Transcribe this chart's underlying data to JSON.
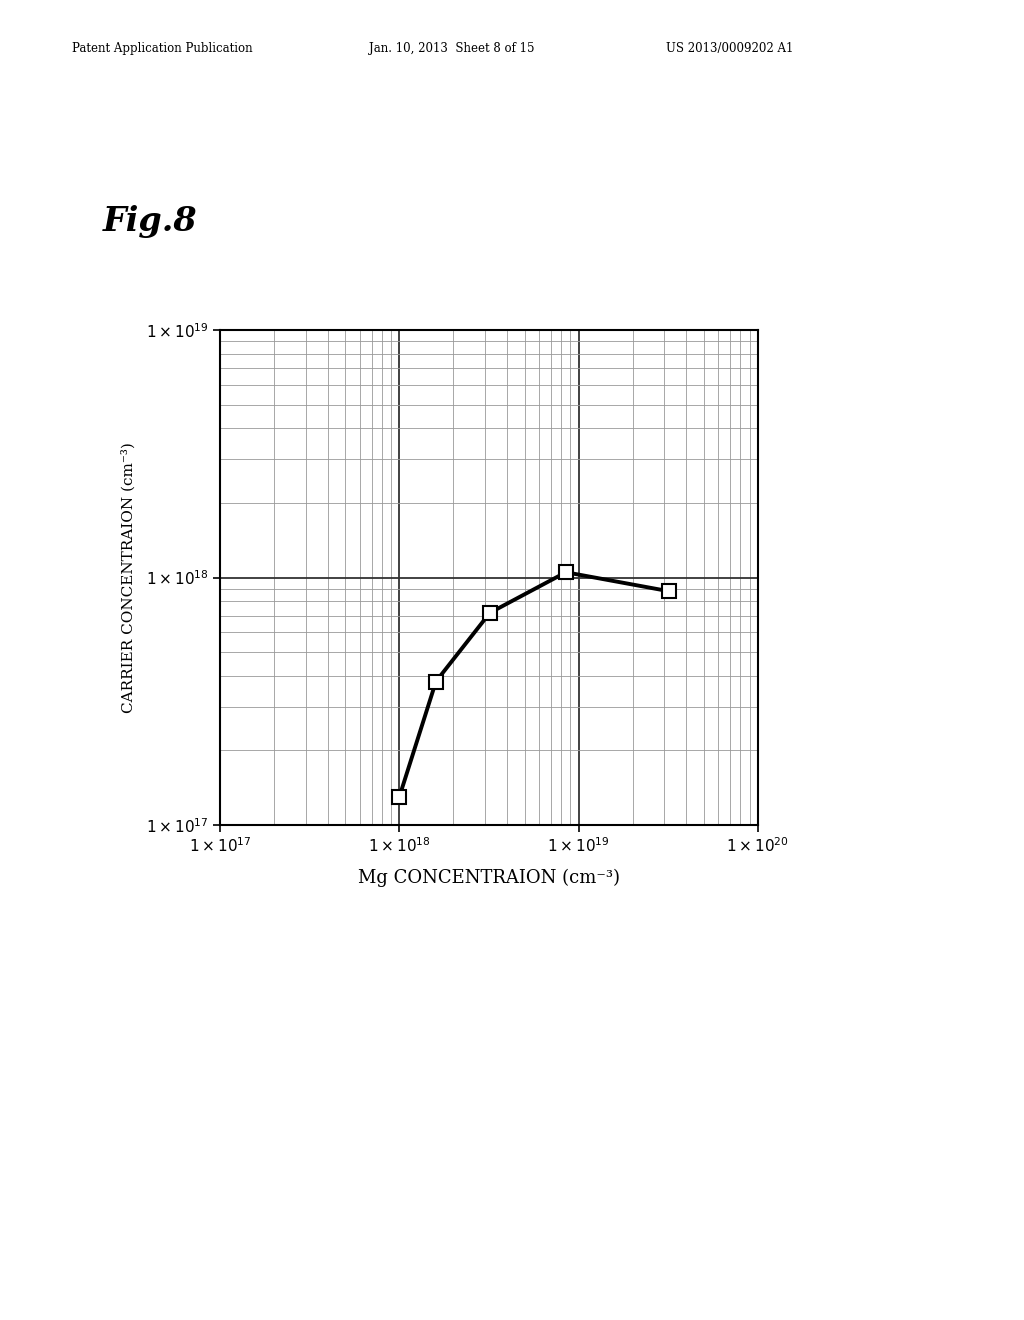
{
  "title": "Fig.8",
  "xlabel": "Mg CONCENTRAION (cm⁻³)",
  "ylabel": "CARRIER CONCENTRAION (cm⁻³)",
  "xlim": [
    1e+17,
    1e+20
  ],
  "ylim": [
    1e+17,
    1e+19
  ],
  "header_left": "Patent Application Publication",
  "header_mid": "Jan. 10, 2013  Sheet 8 of 15",
  "header_right": "US 2013/0009202 A1",
  "data_x": [
    1e+18,
    1.6e+18,
    3.2e+18,
    8.5e+18,
    3.2e+19
  ],
  "data_y": [
    1.3e+17,
    3.8e+17,
    7.2e+17,
    1.05e+18,
    8.8e+17
  ],
  "line_color": "#000000",
  "marker_color": "#ffffff",
  "marker_edge_color": "#000000",
  "line_width": 2.8,
  "marker_size": 10,
  "background_color": "#ffffff",
  "grid_minor_color": "#999999",
  "grid_major_color": "#333333"
}
